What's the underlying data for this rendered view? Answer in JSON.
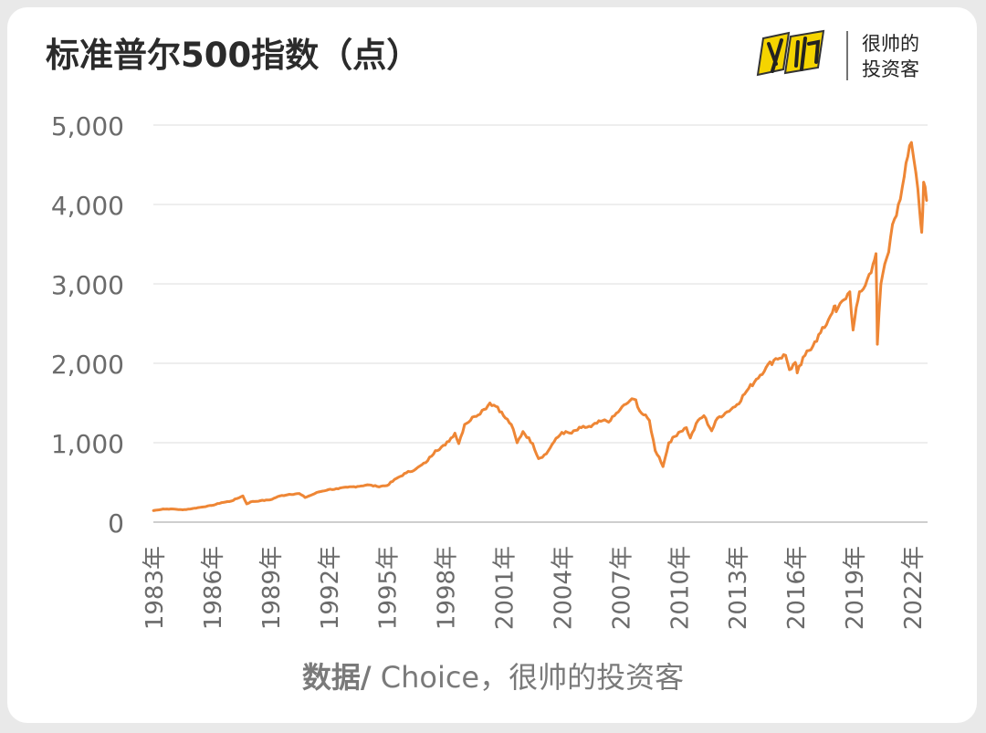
{
  "chart_data": {
    "type": "line",
    "title": "标准普尔500指数（点）",
    "xlabel": "",
    "ylabel": "",
    "ylim": [
      0,
      5000
    ],
    "yticks": [
      0,
      1000,
      2000,
      3000,
      4000,
      5000
    ],
    "ytick_labels": [
      "0",
      "1,000",
      "2,000",
      "3,000",
      "4,000",
      "5,000"
    ],
    "xlim": [
      1983,
      2022.8
    ],
    "xtick_labels": [
      "1983年",
      "1986年",
      "1989年",
      "1992年",
      "1995年",
      "1998年",
      "2001年",
      "2004年",
      "2007年",
      "2010年",
      "2013年",
      "2016年",
      "2019年",
      "2022年"
    ],
    "xtick_values": [
      1983,
      1986,
      1989,
      1992,
      1995,
      1998,
      2001,
      2004,
      2007,
      2010,
      2013,
      2016,
      2019,
      2022
    ],
    "grid": true,
    "series": [
      {
        "name": "",
        "color": "#ee8635",
        "x": [
          1983.0,
          1983.5,
          1984.0,
          1984.5,
          1985.0,
          1985.5,
          1986.0,
          1986.5,
          1987.0,
          1987.6,
          1987.8,
          1988.0,
          1988.5,
          1989.0,
          1989.5,
          1990.0,
          1990.5,
          1990.8,
          1991.0,
          1991.5,
          1992.0,
          1992.5,
          1993.0,
          1993.5,
          1994.0,
          1994.5,
          1995.0,
          1995.5,
          1996.0,
          1996.5,
          1997.0,
          1997.5,
          1998.0,
          1998.5,
          1998.7,
          1999.0,
          1999.5,
          2000.0,
          2000.3,
          2000.7,
          2001.0,
          2001.4,
          2001.7,
          2002.0,
          2002.5,
          2002.8,
          2003.2,
          2003.5,
          2004.0,
          2004.5,
          2005.0,
          2005.5,
          2006.0,
          2006.5,
          2007.0,
          2007.5,
          2007.8,
          2008.0,
          2008.5,
          2008.8,
          2009.0,
          2009.2,
          2009.5,
          2010.0,
          2010.4,
          2010.6,
          2011.0,
          2011.3,
          2011.7,
          2012.0,
          2012.5,
          2013.0,
          2013.5,
          2014.0,
          2014.5,
          2015.0,
          2015.5,
          2015.7,
          2016.0,
          2016.1,
          2016.5,
          2017.0,
          2017.5,
          2018.0,
          2018.1,
          2018.5,
          2018.8,
          2018.97,
          2019.3,
          2019.6,
          2020.0,
          2020.15,
          2020.22,
          2020.4,
          2020.6,
          2020.8,
          2021.0,
          2021.3,
          2021.6,
          2021.97,
          2022.2,
          2022.4,
          2022.5,
          2022.6,
          2022.75
        ],
        "values": [
          145,
          165,
          165,
          155,
          170,
          190,
          210,
          245,
          265,
          330,
          230,
          255,
          270,
          280,
          330,
          350,
          360,
          310,
          330,
          380,
          410,
          420,
          440,
          450,
          470,
          450,
          460,
          550,
          620,
          670,
          750,
          900,
          970,
          1120,
          990,
          1230,
          1330,
          1420,
          1500,
          1450,
          1340,
          1230,
          1000,
          1140,
          990,
          800,
          860,
          980,
          1130,
          1120,
          1190,
          1200,
          1270,
          1280,
          1420,
          1530,
          1540,
          1400,
          1280,
          900,
          820,
          700,
          1000,
          1130,
          1190,
          1060,
          1280,
          1340,
          1150,
          1310,
          1390,
          1480,
          1650,
          1800,
          1950,
          2060,
          2100,
          1920,
          2010,
          1880,
          2100,
          2270,
          2450,
          2720,
          2650,
          2800,
          2900,
          2420,
          2900,
          2980,
          3250,
          3380,
          2240,
          3000,
          3250,
          3400,
          3750,
          4000,
          4350,
          4780,
          4400,
          3900,
          3650,
          4280,
          4050
        ]
      }
    ]
  },
  "footer": {
    "source_bold": "数据/",
    "source_rest": " Choice，很帅的投资客"
  },
  "logo": {
    "line1": "很帅的",
    "line2": "投资客",
    "accent": "#f5d400"
  }
}
